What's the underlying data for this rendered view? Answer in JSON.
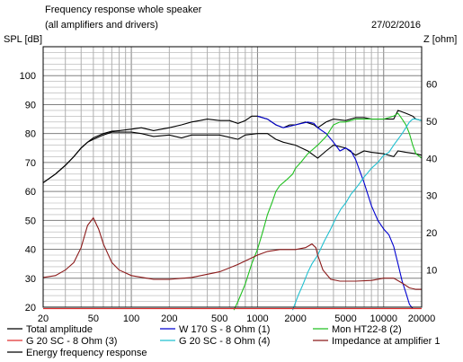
{
  "header": {
    "title": "Frequency response whole speaker",
    "subtitle": "(all amplifiers and drivers)",
    "date": "27/02/2016",
    "left_axis_label": "SPL [dB]",
    "right_axis_label": "Z [ohm]"
  },
  "colors": {
    "total": "#000000",
    "w170": "#0000d0",
    "mon": "#20c020",
    "g20_3": "#e03030",
    "g20_4": "#20c0d0",
    "impedance": "#8b1a1a",
    "energy": "#000000",
    "grid": "#b0b0b0",
    "grid_dark": "#808080"
  },
  "chart_data": {
    "type": "line",
    "x_scale": "log",
    "xlim": [
      20,
      20000
    ],
    "ylim": [
      20,
      110
    ],
    "y2lim": [
      0,
      70
    ],
    "x_ticks": [
      20,
      50,
      100,
      200,
      500,
      1000,
      2000,
      5000,
      10000,
      20000
    ],
    "x_tick_labels": [
      "20",
      "50",
      "100",
      "200",
      "500",
      "1000",
      "2000",
      "5000",
      "10000",
      "20000"
    ],
    "y_ticks": [
      20,
      30,
      40,
      50,
      60,
      70,
      80,
      90,
      100
    ],
    "y_tick_labels": [
      "20",
      "30",
      "40",
      "50",
      "60",
      "70",
      "80",
      "90",
      "100"
    ],
    "y2_ticks": [
      10,
      20,
      30,
      40,
      50,
      60
    ],
    "y2_tick_labels": [
      "10",
      "20",
      "30",
      "40",
      "50",
      "60"
    ],
    "grid": true,
    "legend": [
      {
        "key": "total",
        "label": "Total amplitude"
      },
      {
        "key": "w170",
        "label": "W 170 S - 8 Ohm (1)"
      },
      {
        "key": "mon",
        "label": "Mon HT22-8 (2)"
      },
      {
        "key": "g20_3",
        "label": "G 20 SC - 8 Ohm (3)"
      },
      {
        "key": "g20_4",
        "label": "G 20 SC - 8 Ohm (4)"
      },
      {
        "key": "impedance",
        "label": "Impedance at amplifier 1"
      },
      {
        "key": "energy",
        "label": "Energy frequency response"
      }
    ],
    "series": [
      {
        "key": "total",
        "axis": "left",
        "points": [
          [
            20,
            63
          ],
          [
            25,
            66
          ],
          [
            30,
            69
          ],
          [
            35,
            72
          ],
          [
            40,
            75
          ],
          [
            45,
            77
          ],
          [
            50,
            78.5
          ],
          [
            60,
            80
          ],
          [
            70,
            80.8
          ],
          [
            80,
            81
          ],
          [
            100,
            81.5
          ],
          [
            120,
            82
          ],
          [
            150,
            81
          ],
          [
            200,
            82
          ],
          [
            250,
            83
          ],
          [
            300,
            84
          ],
          [
            350,
            84.5
          ],
          [
            400,
            85
          ],
          [
            500,
            84.5
          ],
          [
            600,
            84.5
          ],
          [
            700,
            83.5
          ],
          [
            800,
            84.5
          ],
          [
            900,
            86
          ],
          [
            1000,
            86
          ],
          [
            1200,
            85
          ],
          [
            1400,
            83
          ],
          [
            1600,
            82
          ],
          [
            1800,
            83
          ],
          [
            2000,
            83
          ],
          [
            2400,
            84
          ],
          [
            2800,
            83
          ],
          [
            3000,
            82
          ],
          [
            3500,
            84
          ],
          [
            4000,
            85
          ],
          [
            5000,
            84.5
          ],
          [
            6000,
            85.5
          ],
          [
            7000,
            85.5
          ],
          [
            8000,
            85
          ],
          [
            10000,
            85
          ],
          [
            12000,
            85
          ],
          [
            13000,
            88
          ],
          [
            15000,
            87
          ],
          [
            17000,
            86
          ],
          [
            18000,
            85
          ],
          [
            20000,
            84.5
          ]
        ]
      },
      {
        "key": "energy",
        "axis": "left",
        "points": [
          [
            20,
            63
          ],
          [
            25,
            66
          ],
          [
            30,
            69
          ],
          [
            35,
            72
          ],
          [
            40,
            75
          ],
          [
            45,
            77
          ],
          [
            50,
            78
          ],
          [
            60,
            79.5
          ],
          [
            70,
            80.5
          ],
          [
            80,
            80.5
          ],
          [
            100,
            80.5
          ],
          [
            120,
            80
          ],
          [
            150,
            79
          ],
          [
            200,
            79.5
          ],
          [
            250,
            78.5
          ],
          [
            300,
            79.5
          ],
          [
            400,
            79.5
          ],
          [
            500,
            79.5
          ],
          [
            700,
            78
          ],
          [
            800,
            79.5
          ],
          [
            1000,
            80
          ],
          [
            1200,
            80
          ],
          [
            1400,
            78
          ],
          [
            1600,
            77
          ],
          [
            2000,
            76
          ],
          [
            2500,
            74
          ],
          [
            3000,
            71.5
          ],
          [
            3500,
            74
          ],
          [
            4000,
            76
          ],
          [
            5000,
            75
          ],
          [
            6000,
            72.5
          ],
          [
            7000,
            74
          ],
          [
            8000,
            73.5
          ],
          [
            10000,
            73
          ],
          [
            12000,
            72
          ],
          [
            13000,
            74
          ],
          [
            15000,
            73.5
          ],
          [
            18000,
            73
          ],
          [
            20000,
            72.5
          ]
        ]
      },
      {
        "key": "w170",
        "axis": "left",
        "points": [
          [
            1000,
            86
          ],
          [
            1200,
            85
          ],
          [
            1400,
            83
          ],
          [
            1600,
            82
          ],
          [
            1800,
            82.5
          ],
          [
            2000,
            83
          ],
          [
            2500,
            84
          ],
          [
            2800,
            83.5
          ],
          [
            3000,
            82
          ],
          [
            3500,
            80
          ],
          [
            4000,
            77
          ],
          [
            4500,
            74
          ],
          [
            5000,
            75
          ],
          [
            5500,
            74
          ],
          [
            6000,
            71
          ],
          [
            7000,
            63
          ],
          [
            8000,
            55
          ],
          [
            9000,
            50
          ],
          [
            10000,
            47
          ],
          [
            11000,
            45
          ],
          [
            12000,
            41
          ],
          [
            13000,
            35
          ],
          [
            14000,
            29
          ],
          [
            15000,
            25
          ],
          [
            16000,
            21
          ],
          [
            17000,
            19.5
          ]
        ]
      },
      {
        "key": "mon",
        "axis": "left",
        "points": [
          [
            650,
            19
          ],
          [
            700,
            22
          ],
          [
            800,
            28
          ],
          [
            900,
            35
          ],
          [
            1000,
            40
          ],
          [
            1100,
            46
          ],
          [
            1200,
            52
          ],
          [
            1300,
            56
          ],
          [
            1400,
            60
          ],
          [
            1500,
            62
          ],
          [
            1700,
            64
          ],
          [
            1900,
            66
          ],
          [
            2000,
            68
          ],
          [
            2200,
            70
          ],
          [
            2500,
            73
          ],
          [
            3000,
            76
          ],
          [
            3500,
            79
          ],
          [
            4000,
            83
          ],
          [
            4500,
            84
          ],
          [
            5000,
            84
          ],
          [
            6000,
            85
          ],
          [
            7000,
            85
          ],
          [
            8000,
            85
          ],
          [
            10000,
            85
          ],
          [
            12000,
            86
          ],
          [
            13000,
            87
          ],
          [
            14000,
            85
          ],
          [
            15000,
            83
          ],
          [
            16000,
            80
          ],
          [
            17000,
            76
          ],
          [
            18000,
            73
          ],
          [
            20000,
            71.5
          ]
        ]
      },
      {
        "key": "g20_4",
        "axis": "left",
        "points": [
          [
            1900,
            19
          ],
          [
            2100,
            24
          ],
          [
            2300,
            28
          ],
          [
            2500,
            32
          ],
          [
            2700,
            35
          ],
          [
            3000,
            38
          ],
          [
            3400,
            43
          ],
          [
            3800,
            47
          ],
          [
            4200,
            51
          ],
          [
            4600,
            54
          ],
          [
            5000,
            56
          ],
          [
            5500,
            59
          ],
          [
            6000,
            61
          ],
          [
            6500,
            63
          ],
          [
            7000,
            65
          ],
          [
            7500,
            66.5
          ],
          [
            8000,
            68
          ],
          [
            9000,
            70
          ],
          [
            10000,
            72.5
          ],
          [
            11000,
            73.5
          ],
          [
            12000,
            76
          ],
          [
            13000,
            78
          ],
          [
            14000,
            80
          ],
          [
            15000,
            82
          ],
          [
            16000,
            84
          ],
          [
            17000,
            85
          ],
          [
            18000,
            85
          ],
          [
            20000,
            84.5
          ]
        ]
      },
      {
        "key": "impedance",
        "axis": "right",
        "points": [
          [
            20,
            8
          ],
          [
            25,
            8.5
          ],
          [
            30,
            10
          ],
          [
            35,
            12
          ],
          [
            40,
            16
          ],
          [
            45,
            22
          ],
          [
            50,
            24
          ],
          [
            55,
            21
          ],
          [
            60,
            17
          ],
          [
            70,
            12
          ],
          [
            80,
            10
          ],
          [
            100,
            8.5
          ],
          [
            150,
            7.5
          ],
          [
            200,
            7.5
          ],
          [
            300,
            8
          ],
          [
            500,
            9.5
          ],
          [
            700,
            11.5
          ],
          [
            1000,
            14
          ],
          [
            1200,
            15
          ],
          [
            1500,
            15.5
          ],
          [
            2000,
            15.5
          ],
          [
            2400,
            16
          ],
          [
            2700,
            17
          ],
          [
            2900,
            16
          ],
          [
            3000,
            14
          ],
          [
            3300,
            10
          ],
          [
            3800,
            7.5
          ],
          [
            4500,
            7
          ],
          [
            6000,
            7
          ],
          [
            8000,
            7.2
          ],
          [
            10000,
            7.8
          ],
          [
            12000,
            7.8
          ],
          [
            14000,
            6.5
          ],
          [
            16000,
            5.2
          ],
          [
            18000,
            4.8
          ],
          [
            20000,
            4.8
          ]
        ]
      },
      {
        "key": "g20_3",
        "axis": "left",
        "points": [
          [
            20,
            19.5
          ],
          [
            20000,
            19.5
          ]
        ]
      }
    ]
  }
}
